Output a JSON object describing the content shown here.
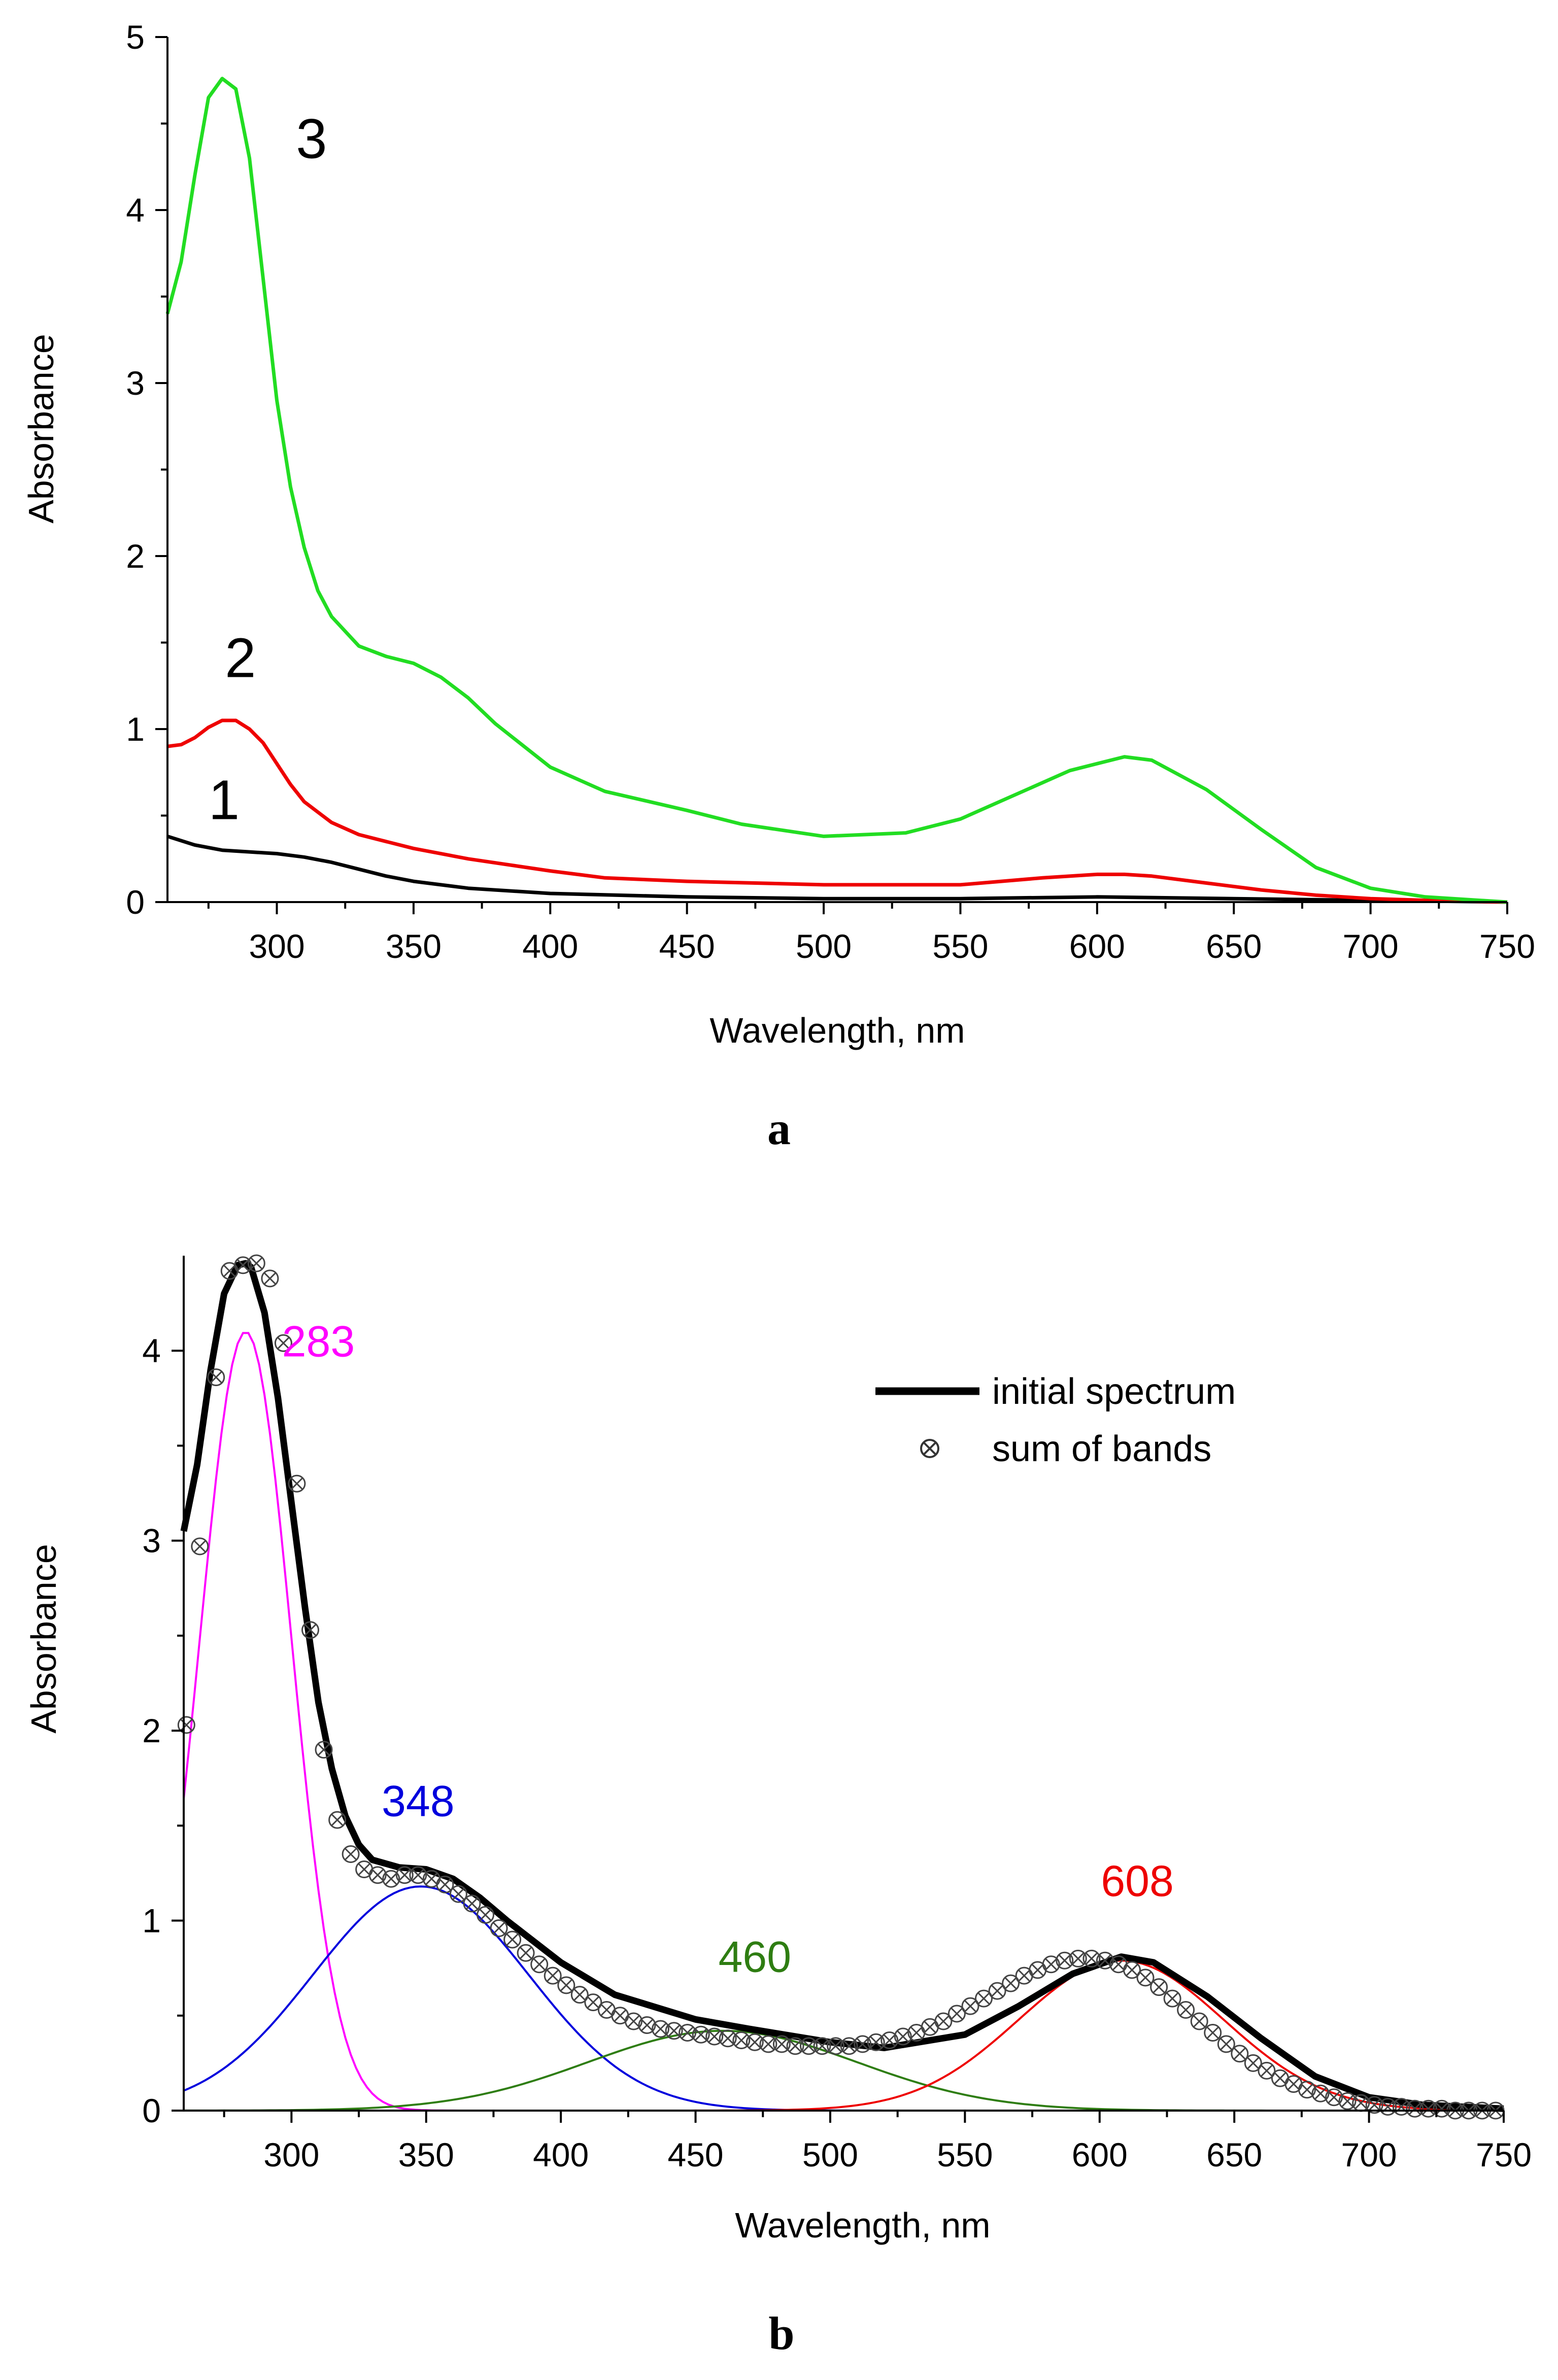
{
  "chart_data": [
    {
      "type": "line",
      "panel": "a",
      "xlabel": "Wavelength, nm",
      "ylabel": "Absorbance",
      "xlim": [
        260,
        750
      ],
      "ylim": [
        0,
        5
      ],
      "xticks": [
        "300",
        "350",
        "400",
        "450",
        "500",
        "550",
        "600",
        "650",
        "700",
        "750"
      ],
      "yticks": [
        "0",
        "1",
        "2",
        "3",
        "4",
        "5"
      ],
      "series": [
        {
          "name": "1",
          "color": "#000000",
          "x": [
            260,
            270,
            280,
            290,
            300,
            310,
            320,
            330,
            340,
            350,
            370,
            400,
            450,
            500,
            550,
            600,
            650,
            700,
            750
          ],
          "y": [
            0.38,
            0.33,
            0.3,
            0.29,
            0.28,
            0.26,
            0.23,
            0.19,
            0.15,
            0.12,
            0.08,
            0.05,
            0.03,
            0.02,
            0.02,
            0.03,
            0.02,
            0.01,
            0.0
          ]
        },
        {
          "name": "2",
          "color": "#ee0000",
          "x": [
            260,
            265,
            270,
            275,
            280,
            285,
            290,
            295,
            300,
            305,
            310,
            320,
            330,
            340,
            350,
            370,
            400,
            420,
            450,
            500,
            550,
            580,
            600,
            610,
            620,
            640,
            660,
            680,
            700,
            720,
            750
          ],
          "y": [
            0.9,
            0.91,
            0.95,
            1.01,
            1.05,
            1.05,
            1.0,
            0.92,
            0.8,
            0.68,
            0.58,
            0.46,
            0.39,
            0.35,
            0.31,
            0.25,
            0.18,
            0.14,
            0.12,
            0.1,
            0.1,
            0.14,
            0.16,
            0.16,
            0.15,
            0.11,
            0.07,
            0.04,
            0.02,
            0.01,
            0.0
          ]
        },
        {
          "name": "3",
          "color": "#22dd22",
          "x": [
            260,
            265,
            270,
            275,
            280,
            285,
            290,
            295,
            300,
            305,
            310,
            315,
            320,
            330,
            340,
            350,
            360,
            370,
            380,
            400,
            420,
            450,
            470,
            500,
            530,
            550,
            570,
            590,
            610,
            620,
            640,
            660,
            680,
            700,
            720,
            750
          ],
          "y": [
            3.4,
            3.7,
            4.2,
            4.65,
            4.76,
            4.7,
            4.3,
            3.6,
            2.9,
            2.4,
            2.05,
            1.8,
            1.65,
            1.48,
            1.42,
            1.38,
            1.3,
            1.18,
            1.03,
            0.78,
            0.64,
            0.53,
            0.45,
            0.38,
            0.4,
            0.48,
            0.62,
            0.76,
            0.84,
            0.82,
            0.65,
            0.42,
            0.2,
            0.08,
            0.03,
            0.0
          ]
        }
      ],
      "annotations": [
        {
          "text": "1",
          "x": 275,
          "y": 0.48
        },
        {
          "text": "2",
          "x": 281,
          "y": 1.3
        },
        {
          "text": "3",
          "x": 307,
          "y": 4.3
        }
      ]
    },
    {
      "type": "line",
      "panel": "b",
      "xlabel": "Wavelength, nm",
      "ylabel": "Absorbance",
      "xlim": [
        260,
        750
      ],
      "ylim": [
        0,
        4.5
      ],
      "xticks": [
        "300",
        "350",
        "400",
        "450",
        "500",
        "550",
        "600",
        "650",
        "700",
        "750"
      ],
      "yticks": [
        "0",
        "1",
        "2",
        "3",
        "4"
      ],
      "bands": [
        {
          "label": "283",
          "center": 283,
          "amplitude": 4.1,
          "sigma": 17,
          "color": "#ff00ff",
          "label_x": 310,
          "label_y": 3.97
        },
        {
          "label": "348",
          "center": 348,
          "amplitude": 1.18,
          "sigma": 40,
          "color": "#0000dd",
          "label_x": 347,
          "label_y": 1.55
        },
        {
          "label": "460",
          "center": 460,
          "amplitude": 0.42,
          "sigma": 50,
          "color": "#2e7d12",
          "label_x": 472,
          "label_y": 0.73
        },
        {
          "label": "608",
          "center": 608,
          "amplitude": 0.79,
          "sigma": 38,
          "color": "#ee0000",
          "label_x": 614,
          "label_y": 1.13
        }
      ],
      "series": [
        {
          "name": "initial spectrum",
          "color": "#000000",
          "x": [
            260,
            265,
            270,
            275,
            280,
            283,
            285,
            290,
            295,
            300,
            305,
            310,
            315,
            320,
            325,
            330,
            340,
            350,
            360,
            370,
            380,
            400,
            420,
            450,
            470,
            500,
            520,
            550,
            570,
            590,
            608,
            620,
            640,
            660,
            680,
            700,
            720,
            750
          ],
          "y": [
            3.05,
            3.4,
            3.9,
            4.3,
            4.45,
            4.46,
            4.44,
            4.2,
            3.75,
            3.2,
            2.65,
            2.15,
            1.8,
            1.55,
            1.4,
            1.32,
            1.28,
            1.27,
            1.22,
            1.12,
            1.0,
            0.78,
            0.61,
            0.48,
            0.43,
            0.36,
            0.33,
            0.4,
            0.55,
            0.72,
            0.81,
            0.78,
            0.6,
            0.38,
            0.18,
            0.07,
            0.03,
            0.01
          ]
        },
        {
          "name": "sum of bands",
          "color": "#000000",
          "x": [
            261,
            266,
            272,
            277,
            282,
            287,
            292,
            297,
            302,
            307,
            312,
            317,
            322,
            327,
            332,
            337,
            342,
            347,
            352,
            357,
            362,
            367,
            372,
            377,
            382,
            387,
            392,
            397,
            402,
            407,
            412,
            417,
            422,
            427,
            432,
            437,
            442,
            447,
            452,
            457,
            462,
            467,
            472,
            477,
            482,
            487,
            492,
            497,
            502,
            507,
            512,
            517,
            522,
            527,
            532,
            537,
            542,
            547,
            552,
            557,
            562,
            567,
            572,
            577,
            582,
            587,
            592,
            597,
            602,
            607,
            612,
            617,
            622,
            627,
            632,
            637,
            642,
            647,
            652,
            657,
            662,
            667,
            672,
            677,
            682,
            687,
            692,
            697,
            702,
            707,
            712,
            717,
            722,
            727,
            732,
            737,
            742,
            747
          ],
          "y": [
            2.03,
            2.97,
            3.86,
            4.42,
            4.45,
            4.46,
            4.38,
            4.04,
            3.3,
            2.53,
            1.9,
            1.53,
            1.35,
            1.27,
            1.24,
            1.22,
            1.24,
            1.24,
            1.22,
            1.19,
            1.14,
            1.09,
            1.03,
            0.96,
            0.9,
            0.83,
            0.77,
            0.71,
            0.66,
            0.61,
            0.57,
            0.53,
            0.5,
            0.47,
            0.45,
            0.43,
            0.42,
            0.41,
            0.4,
            0.39,
            0.38,
            0.37,
            0.36,
            0.35,
            0.35,
            0.34,
            0.34,
            0.34,
            0.34,
            0.34,
            0.35,
            0.36,
            0.37,
            0.39,
            0.41,
            0.44,
            0.47,
            0.51,
            0.55,
            0.59,
            0.63,
            0.67,
            0.71,
            0.74,
            0.77,
            0.79,
            0.8,
            0.8,
            0.79,
            0.77,
            0.74,
            0.7,
            0.65,
            0.59,
            0.53,
            0.47,
            0.41,
            0.35,
            0.3,
            0.25,
            0.21,
            0.17,
            0.14,
            0.11,
            0.09,
            0.07,
            0.05,
            0.04,
            0.03,
            0.02,
            0.02,
            0.01,
            0.01,
            0.01,
            0.0,
            0.0,
            0.0,
            0.0
          ]
        }
      ],
      "legend": [
        "initial spectrum",
        "sum of bands"
      ],
      "legend_position": "top-right"
    }
  ]
}
